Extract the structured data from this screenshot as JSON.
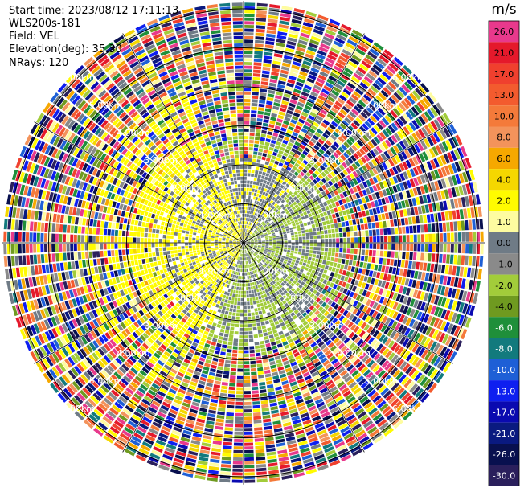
{
  "header": {
    "start_time": "Start time: 2023/08/12 17:11:13",
    "instrument": "WLS200s-181",
    "field": "Field: VEL",
    "elevation": "Elevation(deg): 35.30",
    "nrays": "NRays: 120"
  },
  "colorbar": {
    "unit": "m/s",
    "levels": [
      {
        "label": "26.0",
        "color": "#e8398c"
      },
      {
        "label": "21.0",
        "color": "#e5192b"
      },
      {
        "label": "17.0",
        "color": "#f0402e"
      },
      {
        "label": "13.0",
        "color": "#f35b2e"
      },
      {
        "label": "10.0",
        "color": "#f47a3a"
      },
      {
        "label": "8.0",
        "color": "#f3935b"
      },
      {
        "label": "6.0",
        "color": "#f6a800"
      },
      {
        "label": "4.0",
        "color": "#f5d700"
      },
      {
        "label": "2.0",
        "color": "#fffb00"
      },
      {
        "label": "1.0",
        "color": "#fefca0"
      },
      {
        "label": "0.0",
        "color": "#6f7b86"
      },
      {
        "label": "-1.0",
        "color": "#8a8a8a"
      },
      {
        "label": "-2.0",
        "color": "#a2cc3a"
      },
      {
        "label": "-4.0",
        "color": "#6f9a20"
      },
      {
        "label": "-6.0",
        "color": "#1f8f3a"
      },
      {
        "label": "-8.0",
        "color": "#127a7d"
      },
      {
        "label": "-10.0",
        "color": "#1e5fd6"
      },
      {
        "label": "-13.0",
        "color": "#0e1ff0"
      },
      {
        "label": "-17.0",
        "color": "#0a0ab0"
      },
      {
        "label": "-21.0",
        "color": "#0a1a80"
      },
      {
        "label": "-26.0",
        "color": "#08104f"
      },
      {
        "label": "-30.0",
        "color": "#2a1f5c"
      }
    ]
  },
  "chart_data": {
    "type": "heatmap",
    "projection": "polar PPI",
    "field": "VEL",
    "elevation_deg": 35.3,
    "nrays": 120,
    "range_rings_km": [
      1.0,
      2.0,
      3.0,
      4.0,
      5.0,
      6.0
    ],
    "ring_label_texts": [
      "1.00km",
      "2.00km",
      "3.00km",
      "4.00km",
      "5.00km",
      "6.00km"
    ],
    "azimuth_spokes_deg": [
      0,
      30,
      60,
      90,
      120,
      150,
      180,
      210,
      240,
      270,
      300,
      330
    ],
    "max_range_km": 6.2,
    "value_regions": [
      {
        "range_km": [
          0,
          2.0
        ],
        "sector": "west",
        "dominant_value": 2.0
      },
      {
        "range_km": [
          0,
          2.0
        ],
        "sector": "north",
        "dominant_value": 0.0
      },
      {
        "range_km": [
          0,
          2.2
        ],
        "sector": "east",
        "dominant_value": -2.0
      },
      {
        "range_km": [
          0,
          2.5
        ],
        "sector": "south",
        "dominant_value": -2.0
      },
      {
        "range_km": [
          2.5,
          6.2
        ],
        "sector": "all",
        "dominant_value": "noise"
      }
    ]
  }
}
